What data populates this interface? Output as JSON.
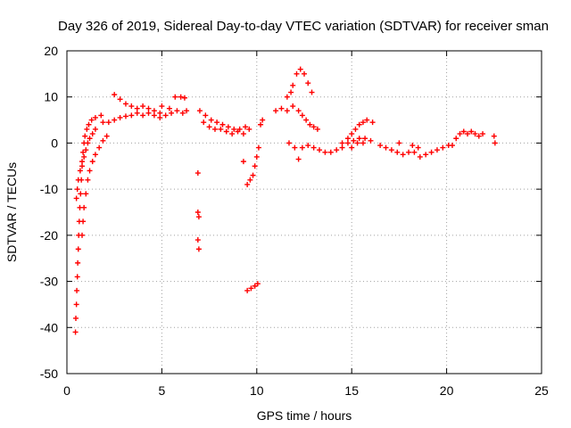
{
  "chart_data": {
    "type": "scatter",
    "title": "Day 326 of 2019, Sidereal Day-to-day VTEC variation (SDTVAR) for receiver sman",
    "xlabel": "GPS time / hours",
    "ylabel": "SDTVAR / TECUs",
    "xlim": [
      0,
      25
    ],
    "ylim": [
      -50,
      20
    ],
    "xticks": [
      0,
      5,
      10,
      15,
      20,
      25
    ],
    "yticks": [
      -50,
      -40,
      -30,
      -20,
      -10,
      0,
      10,
      20
    ],
    "grid": true,
    "marker": "+",
    "marker_color": "#ff0000",
    "series": [
      {
        "name": "SDTVAR",
        "points": [
          [
            0.45,
            -41
          ],
          [
            0.47,
            -38
          ],
          [
            0.5,
            -35
          ],
          [
            0.52,
            -32
          ],
          [
            0.55,
            -29
          ],
          [
            0.57,
            -26
          ],
          [
            0.6,
            -23
          ],
          [
            0.62,
            -20
          ],
          [
            0.65,
            -17
          ],
          [
            0.68,
            -14
          ],
          [
            0.72,
            -11
          ],
          [
            0.76,
            -8
          ],
          [
            0.8,
            -5
          ],
          [
            0.85,
            -2
          ],
          [
            0.9,
            0
          ],
          [
            0.95,
            1.5
          ],
          [
            1.05,
            3
          ],
          [
            1.15,
            4
          ],
          [
            1.3,
            5
          ],
          [
            1.5,
            5.5
          ],
          [
            1.8,
            6
          ],
          [
            0.5,
            -12
          ],
          [
            0.55,
            -10
          ],
          [
            0.6,
            -8
          ],
          [
            0.7,
            -6
          ],
          [
            0.8,
            -4
          ],
          [
            0.9,
            -3
          ],
          [
            1.0,
            -1.5
          ],
          [
            1.1,
            0
          ],
          [
            1.2,
            1
          ],
          [
            1.35,
            2
          ],
          [
            1.5,
            3
          ],
          [
            0.8,
            -20
          ],
          [
            0.85,
            -17
          ],
          [
            0.9,
            -14
          ],
          [
            1.0,
            -11
          ],
          [
            1.1,
            -8
          ],
          [
            1.2,
            -6
          ],
          [
            1.35,
            -4
          ],
          [
            1.5,
            -2.5
          ],
          [
            1.7,
            -1
          ],
          [
            1.9,
            0.5
          ],
          [
            2.1,
            1.5
          ],
          [
            1.9,
            4.5
          ],
          [
            2.2,
            4.5
          ],
          [
            2.5,
            5
          ],
          [
            2.8,
            5.5
          ],
          [
            3.1,
            5.8
          ],
          [
            3.4,
            6
          ],
          [
            3.7,
            6.5
          ],
          [
            4.0,
            6
          ],
          [
            4.3,
            6.5
          ],
          [
            4.6,
            6
          ],
          [
            4.9,
            5.5
          ],
          [
            5.2,
            6
          ],
          [
            5.5,
            6.5
          ],
          [
            5.8,
            7
          ],
          [
            6.1,
            6.5
          ],
          [
            6.3,
            7
          ],
          [
            2.5,
            10.5
          ],
          [
            2.8,
            9.5
          ],
          [
            3.1,
            8.5
          ],
          [
            3.4,
            8
          ],
          [
            3.7,
            7.5
          ],
          [
            4.0,
            8
          ],
          [
            4.3,
            7.5
          ],
          [
            4.6,
            7
          ],
          [
            4.9,
            6.5
          ],
          [
            5.0,
            8
          ],
          [
            5.4,
            7.5
          ],
          [
            5.7,
            10
          ],
          [
            6.0,
            10
          ],
          [
            6.2,
            9.8
          ],
          [
            6.9,
            -6.5
          ],
          [
            6.9,
            -15
          ],
          [
            6.95,
            -16
          ],
          [
            6.9,
            -21
          ],
          [
            6.95,
            -23
          ],
          [
            7.0,
            7
          ],
          [
            7.3,
            6
          ],
          [
            7.6,
            5
          ],
          [
            7.9,
            4.5
          ],
          [
            8.2,
            4
          ],
          [
            8.5,
            3.5
          ],
          [
            8.8,
            3
          ],
          [
            9.1,
            3
          ],
          [
            9.4,
            3.5
          ],
          [
            9.6,
            3
          ],
          [
            7.2,
            4.5
          ],
          [
            7.5,
            3.5
          ],
          [
            7.8,
            3
          ],
          [
            8.1,
            3
          ],
          [
            8.4,
            2.5
          ],
          [
            8.7,
            2
          ],
          [
            9.0,
            2.5
          ],
          [
            9.3,
            2
          ],
          [
            9.5,
            -9
          ],
          [
            9.65,
            -8
          ],
          [
            9.8,
            -7
          ],
          [
            9.9,
            -5
          ],
          [
            10.0,
            -3
          ],
          [
            10.1,
            -1
          ],
          [
            9.3,
            -4
          ],
          [
            9.5,
            -32
          ],
          [
            9.7,
            -31.5
          ],
          [
            9.9,
            -31
          ],
          [
            10.05,
            -30.5
          ],
          [
            10.2,
            4
          ],
          [
            10.3,
            5
          ],
          [
            11.0,
            7
          ],
          [
            11.3,
            7.5
          ],
          [
            11.6,
            7
          ],
          [
            11.9,
            8
          ],
          [
            11.6,
            10
          ],
          [
            11.8,
            11
          ],
          [
            11.9,
            12.5
          ],
          [
            12.1,
            15
          ],
          [
            12.3,
            16
          ],
          [
            12.5,
            15
          ],
          [
            12.7,
            13
          ],
          [
            12.9,
            11
          ],
          [
            12.2,
            7
          ],
          [
            12.4,
            6
          ],
          [
            12.6,
            5
          ],
          [
            12.8,
            4
          ],
          [
            13.0,
            3.5
          ],
          [
            13.2,
            3
          ],
          [
            11.7,
            0
          ],
          [
            12.0,
            -1
          ],
          [
            12.2,
            -3.5
          ],
          [
            12.4,
            -1
          ],
          [
            12.7,
            -0.5
          ],
          [
            13.0,
            -1
          ],
          [
            13.3,
            -1.5
          ],
          [
            13.6,
            -2
          ],
          [
            13.9,
            -2
          ],
          [
            14.2,
            -1.5
          ],
          [
            14.5,
            -1
          ],
          [
            14.8,
            0
          ],
          [
            15.1,
            0.5
          ],
          [
            15.4,
            1
          ],
          [
            15.7,
            1
          ],
          [
            16.0,
            0.5
          ],
          [
            14.5,
            0
          ],
          [
            14.8,
            1
          ],
          [
            15.0,
            2
          ],
          [
            15.2,
            3
          ],
          [
            15.4,
            4
          ],
          [
            15.6,
            4.5
          ],
          [
            15.8,
            5
          ],
          [
            16.1,
            4.5
          ],
          [
            15.0,
            -1
          ],
          [
            15.3,
            0
          ],
          [
            15.6,
            0
          ],
          [
            16.5,
            -0.5
          ],
          [
            16.8,
            -1
          ],
          [
            17.1,
            -1.5
          ],
          [
            17.4,
            -2
          ],
          [
            17.7,
            -2.5
          ],
          [
            18.0,
            -2
          ],
          [
            18.3,
            -2
          ],
          [
            18.6,
            -3
          ],
          [
            18.9,
            -2.5
          ],
          [
            19.2,
            -2
          ],
          [
            19.5,
            -1.5
          ],
          [
            19.8,
            -1
          ],
          [
            20.1,
            -0.5
          ],
          [
            20.3,
            -0.5
          ],
          [
            17.5,
            0
          ],
          [
            18.2,
            -0.5
          ],
          [
            18.5,
            -1
          ],
          [
            20.5,
            1
          ],
          [
            20.7,
            2
          ],
          [
            20.9,
            2.5
          ],
          [
            21.1,
            2
          ],
          [
            21.3,
            2.5
          ],
          [
            21.5,
            2
          ],
          [
            21.7,
            1.5
          ],
          [
            21.9,
            2
          ],
          [
            22.5,
            1.5
          ],
          [
            22.55,
            0
          ]
        ]
      }
    ]
  }
}
